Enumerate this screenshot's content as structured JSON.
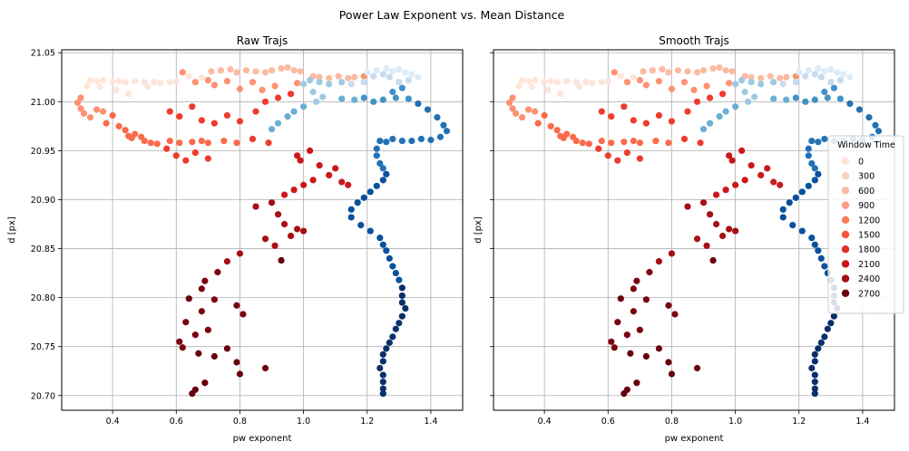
{
  "figure": {
    "title": "Power Law Exponent vs. Mean Distance"
  },
  "legend": {
    "title": "Window Time",
    "items": [
      {
        "label": "0",
        "color": "#fee5d9"
      },
      {
        "label": "300",
        "color": "#fdd0bc"
      },
      {
        "label": "600",
        "color": "#fcbba1"
      },
      {
        "label": "900",
        "color": "#fc9d7f"
      },
      {
        "label": "1200",
        "color": "#fb7b5b"
      },
      {
        "label": "1500",
        "color": "#f5553c"
      },
      {
        "label": "1800",
        "color": "#e32f27"
      },
      {
        "label": "2100",
        "color": "#c8171c"
      },
      {
        "label": "2400",
        "color": "#a50f15"
      },
      {
        "label": "2700",
        "color": "#67000d"
      }
    ]
  },
  "chart_data": [
    {
      "type": "scatter",
      "title": "Raw Trajs",
      "xlabel": "pw exponent",
      "ylabel": "d [px]",
      "xlim": [
        0.24,
        1.5
      ],
      "ylim": [
        20.685,
        21.053
      ],
      "xticks": [
        "0.4",
        "0.6",
        "0.8",
        "1.0",
        "1.2",
        "1.4"
      ],
      "yticks": [
        "20.70",
        "20.75",
        "20.80",
        "20.85",
        "20.90",
        "20.95",
        "21.00",
        "21.05"
      ],
      "grid": true,
      "series": [
        {
          "color": "red-gradient",
          "points": [
            [
              0.33,
              21.022
            ],
            [
              0.35,
              21.021
            ],
            [
              0.37,
              21.022
            ],
            [
              0.4,
              21.02
            ],
            [
              0.42,
              21.021
            ],
            [
              0.44,
              21.02
            ],
            [
              0.47,
              21.021
            ],
            [
              0.5,
              21.02
            ],
            [
              0.53,
              21.02
            ],
            [
              0.55,
              21.019
            ],
            [
              0.58,
              21.02
            ],
            [
              0.6,
              21.021
            ],
            [
              0.32,
              21.016
            ],
            [
              0.36,
              21.015
            ],
            [
              0.41,
              21.012
            ],
            [
              0.45,
              21.008
            ],
            [
              0.51,
              21.015
            ],
            [
              0.64,
              21.026
            ],
            [
              0.68,
              21.025
            ],
            [
              0.71,
              21.031
            ],
            [
              0.74,
              21.032
            ],
            [
              0.77,
              21.033
            ],
            [
              0.79,
              21.03
            ],
            [
              0.82,
              21.032
            ],
            [
              0.85,
              21.031
            ],
            [
              0.88,
              21.03
            ],
            [
              0.9,
              21.032
            ],
            [
              0.93,
              21.034
            ],
            [
              0.95,
              21.035
            ],
            [
              0.97,
              21.032
            ],
            [
              0.99,
              21.031
            ],
            [
              1.03,
              21.026
            ],
            [
              1.05,
              21.025
            ],
            [
              1.08,
              21.024
            ],
            [
              1.11,
              21.026
            ],
            [
              1.14,
              21.024
            ],
            [
              1.16,
              21.025
            ],
            [
              1.19,
              21.026
            ],
            [
              0.62,
              21.03
            ],
            [
              0.66,
              21.02
            ],
            [
              0.7,
              21.022
            ],
            [
              0.72,
              21.017
            ],
            [
              0.76,
              21.021
            ],
            [
              0.8,
              21.013
            ],
            [
              0.84,
              21.02
            ],
            [
              0.87,
              21.012
            ],
            [
              0.91,
              21.016
            ],
            [
              0.98,
              21.019
            ],
            [
              0.3,
              21.004
            ],
            [
              0.29,
              20.999
            ],
            [
              0.3,
              20.993
            ],
            [
              0.31,
              20.988
            ],
            [
              0.33,
              20.984
            ],
            [
              0.35,
              20.992
            ],
            [
              0.37,
              20.99
            ],
            [
              0.38,
              20.978
            ],
            [
              0.4,
              20.986
            ],
            [
              0.42,
              20.975
            ],
            [
              0.44,
              20.971
            ],
            [
              0.45,
              20.965
            ],
            [
              0.46,
              20.963
            ],
            [
              0.47,
              20.967
            ],
            [
              0.49,
              20.964
            ],
            [
              0.5,
              20.96
            ],
            [
              0.52,
              20.958
            ],
            [
              0.54,
              20.957
            ],
            [
              0.58,
              20.96
            ],
            [
              0.61,
              20.958
            ],
            [
              0.65,
              20.959
            ],
            [
              0.68,
              20.96
            ],
            [
              0.7,
              20.958
            ],
            [
              0.75,
              20.96
            ],
            [
              0.79,
              20.958
            ],
            [
              0.84,
              20.962
            ],
            [
              0.89,
              20.958
            ],
            [
              0.58,
              20.99
            ],
            [
              0.61,
              20.985
            ],
            [
              0.65,
              20.995
            ],
            [
              0.68,
              20.981
            ],
            [
              0.72,
              20.978
            ],
            [
              0.76,
              20.986
            ],
            [
              0.8,
              20.98
            ],
            [
              0.85,
              20.99
            ],
            [
              0.88,
              21.0
            ],
            [
              0.92,
              21.004
            ],
            [
              0.96,
              21.008
            ],
            [
              0.57,
              20.952
            ],
            [
              0.6,
              20.945
            ],
            [
              0.63,
              20.94
            ],
            [
              0.66,
              20.948
            ],
            [
              0.7,
              20.942
            ]
          ]
        },
        {
          "color": "dark-red-gradient",
          "points": [
            [
              0.98,
              20.945
            ],
            [
              0.99,
              20.94
            ],
            [
              1.02,
              20.95
            ],
            [
              1.05,
              20.935
            ],
            [
              1.08,
              20.925
            ],
            [
              1.1,
              20.932
            ],
            [
              1.12,
              20.918
            ],
            [
              1.14,
              20.915
            ],
            [
              1.03,
              20.92
            ],
            [
              1.0,
              20.915
            ],
            [
              0.97,
              20.91
            ],
            [
              0.94,
              20.905
            ],
            [
              0.9,
              20.897
            ],
            [
              0.85,
              20.893
            ],
            [
              0.92,
              20.885
            ],
            [
              0.94,
              20.875
            ],
            [
              0.96,
              20.863
            ],
            [
              0.98,
              20.87
            ],
            [
              1.0,
              20.868
            ],
            [
              0.88,
              20.86
            ],
            [
              0.91,
              20.853
            ],
            [
              0.8,
              20.845
            ],
            [
              0.76,
              20.837
            ],
            [
              0.73,
              20.826
            ],
            [
              0.69,
              20.817
            ],
            [
              0.68,
              20.809
            ],
            [
              0.72,
              20.798
            ],
            [
              0.79,
              20.792
            ],
            [
              0.81,
              20.783
            ],
            [
              0.68,
              20.786
            ],
            [
              0.63,
              20.775
            ],
            [
              0.7,
              20.767
            ],
            [
              0.66,
              20.762
            ],
            [
              0.61,
              20.755
            ],
            [
              0.62,
              20.749
            ],
            [
              0.67,
              20.743
            ],
            [
              0.72,
              20.74
            ],
            [
              0.79,
              20.734
            ],
            [
              0.88,
              20.728
            ],
            [
              0.8,
              20.722
            ],
            [
              0.69,
              20.713
            ],
            [
              0.66,
              20.706
            ],
            [
              0.65,
              20.702
            ],
            [
              0.76,
              20.748
            ],
            [
              0.93,
              20.838
            ],
            [
              0.64,
              20.799
            ]
          ]
        },
        {
          "color": "blue-gradient",
          "points": [
            [
              1.2,
              21.03
            ],
            [
              1.23,
              21.032
            ],
            [
              1.26,
              21.034
            ],
            [
              1.28,
              21.031
            ],
            [
              1.3,
              21.033
            ],
            [
              1.32,
              21.03
            ],
            [
              1.34,
              21.028
            ],
            [
              1.36,
              21.025
            ],
            [
              1.33,
              21.022
            ],
            [
              1.3,
              21.02
            ],
            [
              1.27,
              21.025
            ],
            [
              1.25,
              21.028
            ],
            [
              1.22,
              21.026
            ],
            [
              1.19,
              21.02
            ],
            [
              1.15,
              21.018
            ],
            [
              1.12,
              21.02
            ],
            [
              1.08,
              21.018
            ],
            [
              1.05,
              21.02
            ],
            [
              1.02,
              21.022
            ],
            [
              1.0,
              21.018
            ],
            [
              1.03,
              21.01
            ],
            [
              1.06,
              21.005
            ],
            [
              1.04,
              21.0
            ],
            [
              1.0,
              20.995
            ],
            [
              0.97,
              20.99
            ],
            [
              0.95,
              20.985
            ],
            [
              0.92,
              20.978
            ],
            [
              0.9,
              20.972
            ],
            [
              1.12,
              21.003
            ],
            [
              1.16,
              21.002
            ],
            [
              1.19,
              21.004
            ],
            [
              1.22,
              21.0
            ],
            [
              1.25,
              21.002
            ],
            [
              1.29,
              21.004
            ],
            [
              1.33,
              21.003
            ],
            [
              1.28,
              21.01
            ],
            [
              1.31,
              21.014
            ]
          ]
        },
        {
          "color": "dark-blue-gradient",
          "points": [
            [
              1.36,
              20.998
            ],
            [
              1.39,
              20.992
            ],
            [
              1.42,
              20.984
            ],
            [
              1.44,
              20.976
            ],
            [
              1.45,
              20.97
            ],
            [
              1.43,
              20.964
            ],
            [
              1.4,
              20.961
            ],
            [
              1.37,
              20.962
            ],
            [
              1.34,
              20.96
            ],
            [
              1.31,
              20.96
            ],
            [
              1.28,
              20.962
            ],
            [
              1.26,
              20.959
            ],
            [
              1.24,
              20.96
            ],
            [
              1.23,
              20.952
            ],
            [
              1.23,
              20.945
            ],
            [
              1.24,
              20.937
            ],
            [
              1.25,
              20.932
            ],
            [
              1.26,
              20.926
            ],
            [
              1.25,
              20.92
            ],
            [
              1.23,
              20.914
            ],
            [
              1.21,
              20.908
            ],
            [
              1.19,
              20.902
            ],
            [
              1.17,
              20.897
            ],
            [
              1.15,
              20.89
            ],
            [
              1.15,
              20.882
            ],
            [
              1.18,
              20.874
            ],
            [
              1.21,
              20.868
            ],
            [
              1.24,
              20.861
            ],
            [
              1.25,
              20.854
            ],
            [
              1.26,
              20.848
            ],
            [
              1.27,
              20.84
            ],
            [
              1.28,
              20.832
            ],
            [
              1.29,
              20.825
            ],
            [
              1.3,
              20.818
            ],
            [
              1.31,
              20.81
            ],
            [
              1.31,
              20.802
            ],
            [
              1.31,
              20.795
            ],
            [
              1.32,
              20.789
            ],
            [
              1.31,
              20.781
            ],
            [
              1.3,
              20.774
            ],
            [
              1.29,
              20.768
            ],
            [
              1.28,
              20.76
            ],
            [
              1.27,
              20.754
            ],
            [
              1.26,
              20.748
            ],
            [
              1.25,
              20.742
            ],
            [
              1.25,
              20.735
            ],
            [
              1.24,
              20.728
            ],
            [
              1.25,
              20.721
            ],
            [
              1.25,
              20.714
            ],
            [
              1.25,
              20.707
            ],
            [
              1.25,
              20.702
            ]
          ]
        }
      ]
    },
    {
      "type": "scatter",
      "title": "Smooth Trajs",
      "xlabel": "pw exponent",
      "ylabel": "d [px]",
      "xlim": [
        0.24,
        1.5
      ],
      "ylim": [
        20.685,
        21.053
      ],
      "xticks": [
        "0.4",
        "0.6",
        "0.8",
        "1.0",
        "1.2",
        "1.4"
      ],
      "yticks": [
        "20.70",
        "20.75",
        "20.80",
        "20.85",
        "20.90",
        "20.95",
        "21.00",
        "21.05"
      ],
      "grid": true,
      "same_data_as": 0
    }
  ]
}
